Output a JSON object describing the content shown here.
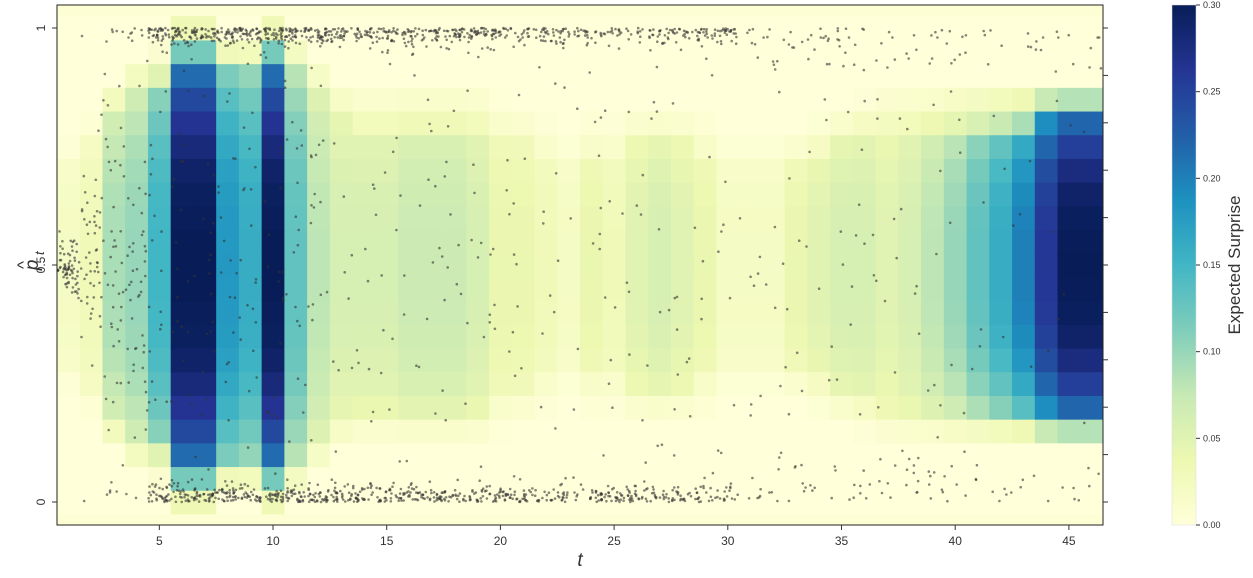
{
  "chart_data": {
    "type": "heatmap",
    "title": "",
    "xlabel": "t",
    "ylabel_main": "p",
    "ylabel_sub": "t",
    "colorbar_label": "Expected Surprise",
    "colormap": "YlGnBu",
    "colormap_stops": [
      "#ffffd9",
      "#edf8b1",
      "#c7e9b4",
      "#7fcdbb",
      "#41b6c4",
      "#1d91c0",
      "#225ea8",
      "#253494",
      "#081d58"
    ],
    "t_range": [
      1,
      46
    ],
    "p_range": [
      0,
      1
    ],
    "p_bins": 21,
    "vmin": 0.0,
    "vmax": 0.3,
    "x_ticks": [
      5,
      10,
      15,
      20,
      25,
      30,
      35,
      40,
      45
    ],
    "x_tick_labels": [
      "5",
      "10",
      "15",
      "20",
      "25",
      "30",
      "35",
      "40",
      "45"
    ],
    "y_ticks": [
      0,
      0.5,
      1
    ],
    "y_tick_labels": [
      "0",
      "0.5",
      "1"
    ],
    "colorbar_ticks": [
      0.0,
      0.05,
      0.1,
      0.15,
      0.2,
      0.25,
      0.3
    ],
    "colorbar_tick_labels": [
      "0.00",
      "0.05",
      "0.10",
      "0.15",
      "0.20",
      "0.25",
      "0.30"
    ],
    "column_peak_surprise": [
      0.02,
      0.03,
      0.09,
      0.1,
      0.15,
      0.3,
      0.3,
      0.18,
      0.16,
      0.3,
      0.13,
      0.08,
      0.06,
      0.06,
      0.06,
      0.07,
      0.07,
      0.07,
      0.06,
      0.04,
      0.04,
      0.03,
      0.02,
      0.04,
      0.03,
      0.05,
      0.06,
      0.05,
      0.04,
      0.02,
      0.02,
      0.02,
      0.04,
      0.05,
      0.06,
      0.06,
      0.05,
      0.06,
      0.08,
      0.1,
      0.13,
      0.16,
      0.2,
      0.26,
      0.3,
      0.3
    ],
    "column_spread": [
      0.2,
      0.25,
      0.32,
      0.36,
      0.38,
      0.44,
      0.44,
      0.4,
      0.4,
      0.44,
      0.4,
      0.36,
      0.32,
      0.3,
      0.3,
      0.3,
      0.3,
      0.3,
      0.3,
      0.28,
      0.26,
      0.24,
      0.22,
      0.24,
      0.24,
      0.26,
      0.26,
      0.26,
      0.24,
      0.22,
      0.22,
      0.22,
      0.22,
      0.24,
      0.26,
      0.28,
      0.3,
      0.3,
      0.3,
      0.3,
      0.3,
      0.3,
      0.3,
      0.32,
      0.32,
      0.32
    ],
    "scatter_points": "simulated belief trajectories p̂_t per trial t (dense near 0 and 1 for t 5–30, near 0.5 for t 1–4)",
    "scatter_color": "#333333",
    "legend": "none",
    "grid": false
  }
}
